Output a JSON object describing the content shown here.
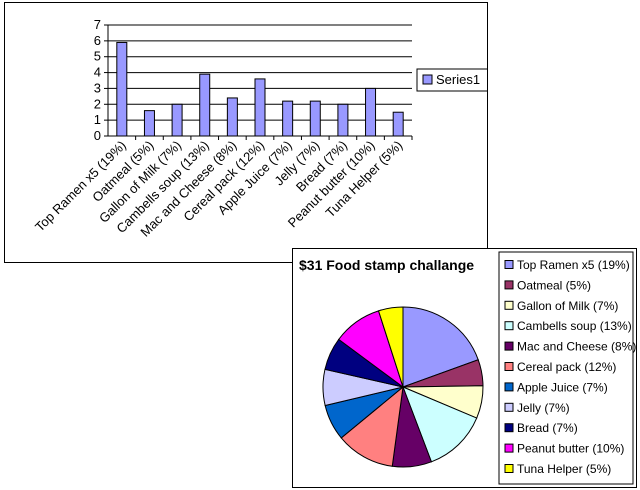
{
  "chart_data": [
    {
      "type": "bar",
      "title": "",
      "xlabel": "",
      "ylabel": "",
      "ylim": [
        0,
        7
      ],
      "yticks": [
        0,
        1,
        2,
        3,
        4,
        5,
        6,
        7
      ],
      "grid": true,
      "legend_position": "right",
      "bar_color": "#9999ff",
      "categories": [
        "Top Ramen x5 (19%)",
        "Oatmeal (5%)",
        "Gallon of Milk (7%)",
        "Cambells soup (13%)",
        "Mac and Cheese (8%)",
        "Cereal pack (12%)",
        "Apple Juice (7%)",
        "Jelly (7%)",
        "Bread (7%)",
        "Peanut butter (10%)",
        "Tuna Helper (5%)"
      ],
      "series": [
        {
          "name": "Series1",
          "values": [
            5.9,
            1.6,
            2.0,
            3.9,
            2.4,
            3.6,
            2.2,
            2.2,
            2.0,
            3.0,
            1.5
          ]
        }
      ]
    },
    {
      "type": "pie",
      "title": "$31 Food stamp challange",
      "legend_position": "right",
      "labels": [
        "Top Ramen x5 (19%)",
        "Oatmeal (5%)",
        "Gallon of Milk (7%)",
        "Cambells soup (13%)",
        "Mac and Cheese (8%)",
        "Cereal pack (12%)",
        "Apple Juice (7%)",
        "Jelly (7%)",
        "Bread (7%)",
        "Peanut butter (10%)",
        "Tuna Helper (5%)"
      ],
      "values": [
        5.9,
        1.6,
        2.0,
        3.9,
        2.4,
        3.6,
        2.2,
        2.2,
        2.0,
        3.0,
        1.5
      ],
      "colors": [
        "#9999ff",
        "#993366",
        "#ffffcc",
        "#ccffff",
        "#660066",
        "#ff8080",
        "#0066cc",
        "#ccccff",
        "#000080",
        "#ff00ff",
        "#ffff00"
      ]
    }
  ]
}
